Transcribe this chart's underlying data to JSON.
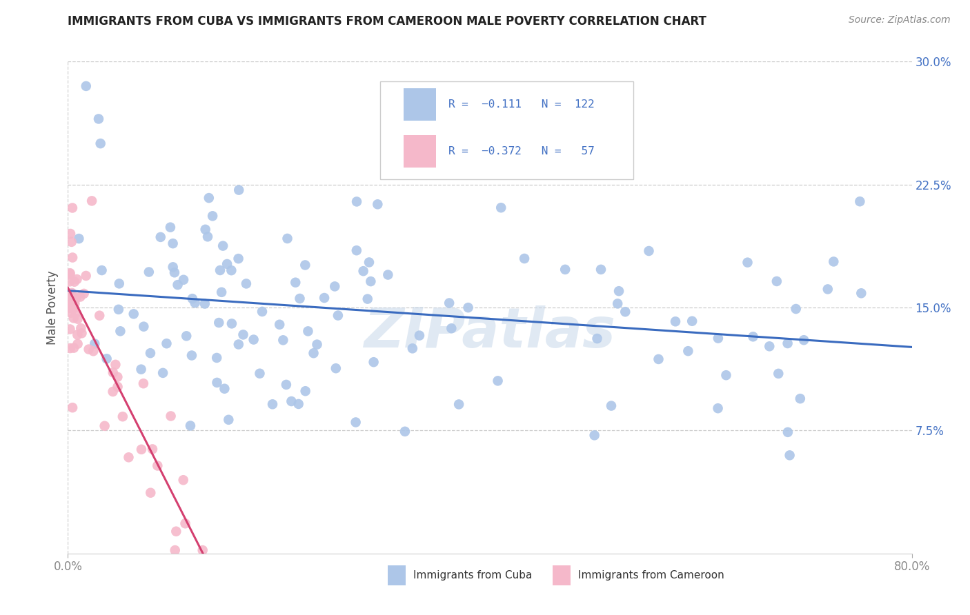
{
  "title": "IMMIGRANTS FROM CUBA VS IMMIGRANTS FROM CAMEROON MALE POVERTY CORRELATION CHART",
  "source": "Source: ZipAtlas.com",
  "ylabel": "Male Poverty",
  "xlim": [
    0.0,
    0.8
  ],
  "ylim": [
    0.0,
    0.3
  ],
  "cuba_R": -0.111,
  "cuba_N": 122,
  "cameroon_R": -0.372,
  "cameroon_N": 57,
  "cuba_color": "#adc6e8",
  "cameroon_color": "#f5b8ca",
  "cuba_line_color": "#3a6bbf",
  "cameroon_line_color": "#d44070",
  "legend_color": "#4472c4",
  "watermark": "ZIPatlas",
  "grid_color": "#cccccc",
  "background_color": "#ffffff",
  "title_color": "#222222",
  "source_color": "#888888",
  "ylabel_color": "#555555",
  "tick_color": "#4472c4",
  "xtick_color": "#888888"
}
